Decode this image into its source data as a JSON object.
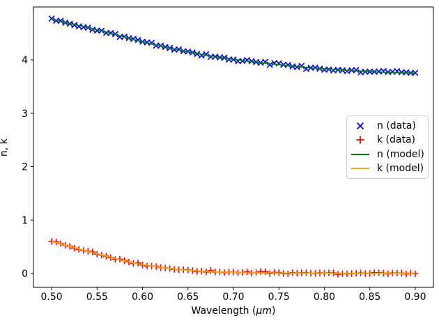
{
  "figure": {
    "background": "#ffffff",
    "text_color": "#000000"
  },
  "chart_data": {
    "type": "scatter+line",
    "title": "",
    "xlabel": {
      "prefix": "Wavelength (",
      "unit": "μm",
      "suffix": ")"
    },
    "ylabel": "n, k",
    "xlim": [
      0.48,
      0.92
    ],
    "ylim": [
      -0.26,
      4.99
    ],
    "grid": false,
    "x_ticks": {
      "values": [
        0.5,
        0.55,
        0.6,
        0.65,
        0.7,
        0.75,
        0.8,
        0.85,
        0.9
      ],
      "labels": [
        "0.50",
        "0.55",
        "0.60",
        "0.65",
        "0.70",
        "0.75",
        "0.80",
        "0.85",
        "0.90"
      ]
    },
    "y_ticks": {
      "values": [
        0,
        1,
        2,
        3,
        4
      ],
      "labels": [
        "0",
        "1",
        "2",
        "3",
        "4"
      ]
    },
    "sampling": {
      "x_start": 0.5,
      "x_end": 0.9,
      "num_points": 81
    },
    "anchors": {
      "x": [
        0.5,
        0.55,
        0.6,
        0.65,
        0.7,
        0.75,
        0.8,
        0.85,
        0.9
      ],
      "n": [
        4.76,
        4.56,
        4.34,
        4.15,
        4.01,
        3.91,
        3.83,
        3.78,
        3.75
      ],
      "k": [
        0.6,
        0.37,
        0.165,
        0.06,
        0.022,
        0.009,
        0.004,
        0.002,
        0.001
      ]
    },
    "series": [
      {
        "name": "n (data)",
        "key": "n-data",
        "type": "scatter",
        "marker": "x",
        "color": "#0000ff",
        "source": "n",
        "noise": 0.012
      },
      {
        "name": "k (data)",
        "key": "k-data",
        "type": "scatter",
        "marker": "+",
        "color": "#ff0000",
        "source": "k",
        "noise": 0.009
      },
      {
        "name": "n (model)",
        "key": "n-model",
        "type": "line",
        "color": "#008000",
        "source": "n"
      },
      {
        "name": "k (model)",
        "key": "k-model",
        "type": "line",
        "color": "#ffa500",
        "source": "k"
      }
    ],
    "legend": {
      "position": "center right",
      "entries": [
        {
          "label": "n (data)"
        },
        {
          "label": "k (data)"
        },
        {
          "label": "n (model)"
        },
        {
          "label": "k (model)"
        }
      ]
    }
  }
}
